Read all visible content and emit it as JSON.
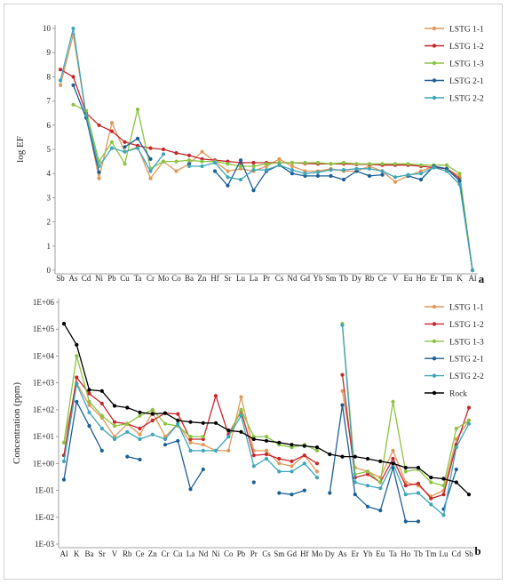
{
  "chart_data": [
    {
      "type": "line",
      "panel_label": "a",
      "ylabel": "log EF",
      "ylim": [
        0,
        10
      ],
      "yticks": [
        0,
        1,
        2,
        3,
        4,
        5,
        6,
        7,
        8,
        9,
        10
      ],
      "categories": [
        "Sb",
        "As",
        "Cd",
        "Ni",
        "Pb",
        "Cu",
        "Ta",
        "Cr",
        "Mo",
        "Co",
        "Ba",
        "Zn",
        "Hf",
        "Sr",
        "Lu",
        "La",
        "Pr",
        "Cs",
        "Nd",
        "Gd",
        "Yb",
        "Sm",
        "Tb",
        "Dy",
        "Rb",
        "Ce",
        "V",
        "Eu",
        "Ho",
        "Er",
        "Tm",
        "K",
        "Al"
      ],
      "series": [
        {
          "name": "LSTG 1-1",
          "color": "#e0995a",
          "values": [
            7.65,
            9.75,
            6.4,
            3.8,
            6.1,
            4.9,
            5.1,
            3.8,
            4.5,
            4.1,
            4.4,
            4.9,
            4.5,
            4.1,
            4.2,
            4.1,
            4.3,
            4.6,
            4.3,
            4.1,
            4.1,
            4.2,
            4.1,
            4.1,
            4.3,
            4.1,
            3.65,
            3.9,
            4.1,
            4.3,
            4.2,
            3.9,
            0
          ]
        },
        {
          "name": "LSTG 1-2",
          "color": "#c6262b",
          "values": [
            8.3,
            8.0,
            6.5,
            6.0,
            5.75,
            5.3,
            5.15,
            5.05,
            5.0,
            4.85,
            4.75,
            4.6,
            4.55,
            4.5,
            4.45,
            4.45,
            4.45,
            4.45,
            4.45,
            4.42,
            4.4,
            4.4,
            4.4,
            4.38,
            4.38,
            4.35,
            4.35,
            4.35,
            4.3,
            4.25,
            4.2,
            3.8,
            0
          ]
        },
        {
          "name": "LSTG 1-3",
          "color": "#8ac43f",
          "values": [
            null,
            6.85,
            6.6,
            4.5,
            5.3,
            4.4,
            6.65,
            4.2,
            4.5,
            4.5,
            4.55,
            4.5,
            4.5,
            4.4,
            4.3,
            4.3,
            4.4,
            4.45,
            4.45,
            4.45,
            4.45,
            4.4,
            4.45,
            4.4,
            4.4,
            4.4,
            4.4,
            4.4,
            4.35,
            4.35,
            4.35,
            4.0,
            0
          ]
        },
        {
          "name": "LSTG 2-1",
          "color": "#1c5f96",
          "values": [
            null,
            7.65,
            6.3,
            4.05,
            null,
            5.1,
            5.45,
            4.6,
            null,
            null,
            4.4,
            null,
            4.1,
            3.5,
            4.55,
            3.3,
            4.1,
            4.35,
            4.0,
            3.9,
            3.9,
            3.9,
            3.75,
            4.1,
            3.9,
            3.95,
            null,
            3.9,
            3.75,
            4.3,
            4.2,
            3.7,
            0
          ]
        },
        {
          "name": "LSTG 2-2",
          "color": "#3da6b8",
          "values": [
            7.85,
            10.0,
            6.4,
            4.3,
            5.05,
            4.9,
            5.05,
            4.1,
            4.8,
            null,
            4.3,
            4.3,
            4.45,
            3.85,
            3.75,
            4.15,
            4.15,
            4.35,
            4.15,
            4.0,
            4.05,
            4.15,
            4.15,
            4.2,
            4.2,
            4.1,
            3.85,
            3.95,
            4.0,
            4.25,
            4.1,
            3.55,
            0
          ]
        }
      ]
    },
    {
      "type": "line",
      "panel_label": "b",
      "ylabel": "Concentration (ppm)",
      "yscale": "log",
      "ylim": [
        0.001,
        1000000
      ],
      "yticks": [
        "1E-03",
        "1E-02",
        "1E-01",
        "1E+00",
        "1E+01",
        "1E+02",
        "1E+03",
        "1E+04",
        "1E+05",
        "1E+06"
      ],
      "categories": [
        "Al",
        "K",
        "Ba",
        "Sr",
        "V",
        "Rb",
        "Ce",
        "Zn",
        "Cr",
        "Cu",
        "La",
        "Nd",
        "Ni",
        "Co",
        "Pb",
        "Pr",
        "Cs",
        "Sm",
        "Gd",
        "Hf",
        "Mo",
        "Dy",
        "As",
        "Er",
        "Yb",
        "Eu",
        "Ta",
        "Ho",
        "Tb",
        "Tm",
        "Lu",
        "Cd",
        "Sb"
      ],
      "series": [
        {
          "name": "LSTG 1-1",
          "color": "#e0995a",
          "values": [
            6,
            1000,
            150,
            50,
            10,
            30,
            12,
            80,
            10,
            30,
            6,
            5,
            3,
            3,
            300,
            3,
            3,
            1,
            0.8,
            2,
            0.5,
            null,
            500,
            0.7,
            0.5,
            0.3,
            3,
            0.2,
            0.15,
            0.06,
            0.1,
            8,
            40
          ]
        },
        {
          "name": "LSTG 1-2",
          "color": "#c6262b",
          "values": [
            2,
            1600,
            400,
            170,
            35,
            30,
            20,
            40,
            75,
            70,
            8,
            8,
            330,
            12,
            90,
            2,
            2.2,
            1.5,
            1.2,
            2,
            1,
            null,
            2000,
            0.3,
            0.4,
            0.2,
            1.5,
            0.15,
            0.18,
            0.05,
            0.07,
            5,
            120
          ]
        },
        {
          "name": "LSTG 1-3",
          "color": "#8ac43f",
          "values": [
            6,
            10000,
            200,
            60,
            25,
            30,
            60,
            100,
            30,
            25,
            10,
            10,
            null,
            10,
            100,
            10,
            10,
            5,
            4,
            5,
            3,
            null,
            160000,
            0.4,
            0.5,
            0.2,
            200,
            0.5,
            0.6,
            0.2,
            0.15,
            20,
            40
          ]
        },
        {
          "name": "LSTG 2-1",
          "color": "#1c5f96",
          "values": [
            0.25,
            200,
            25,
            3,
            null,
            1.8,
            1.4,
            null,
            5,
            7,
            0.11,
            0.6,
            null,
            null,
            null,
            0.2,
            null,
            0.08,
            0.07,
            0.1,
            null,
            0.08,
            150,
            0.07,
            0.025,
            0.018,
            0.7,
            0.007,
            0.007,
            null,
            0.02,
            0.6,
            null
          ]
        },
        {
          "name": "LSTG 2-2",
          "color": "#3da6b8",
          "values": [
            1.2,
            900,
            80,
            20,
            8,
            15,
            8,
            12,
            8,
            30,
            3,
            3,
            3,
            10,
            60,
            0.8,
            1.5,
            0.5,
            0.5,
            1,
            0.3,
            null,
            140000,
            0.2,
            0.15,
            0.12,
            1,
            0.07,
            0.08,
            0.03,
            0.012,
            4,
            30
          ]
        },
        {
          "name": "Rock",
          "color": "#000000",
          "values": [
            160000,
            26000,
            550,
            500,
            140,
            120,
            80,
            70,
            75,
            40,
            35,
            32,
            32,
            17,
            15,
            8,
            7,
            6,
            5,
            4.5,
            4,
            2.2,
            1.8,
            1.8,
            1.5,
            1.2,
            1,
            0.7,
            0.7,
            0.3,
            0.27,
            0.2,
            0.07
          ]
        }
      ]
    }
  ]
}
